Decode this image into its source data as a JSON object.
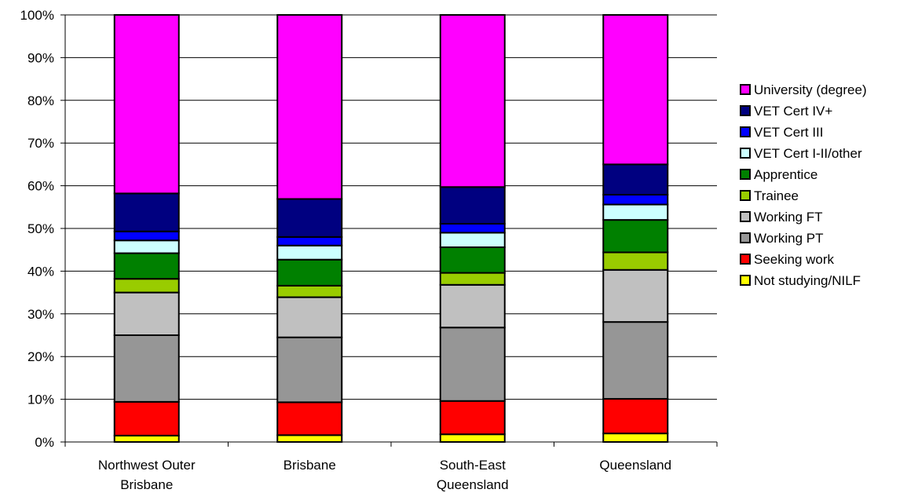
{
  "chart_data": {
    "type": "bar",
    "stacked": true,
    "percent": true,
    "categories": [
      [
        "Northwest Outer",
        "Brisbane"
      ],
      [
        "Brisbane"
      ],
      [
        "South-East",
        "Queensland"
      ],
      [
        "Queensland"
      ]
    ],
    "series": [
      {
        "name": "Not studying/NILF",
        "color": "#FFFF00",
        "values": [
          1.5,
          1.6,
          1.8,
          2.0
        ]
      },
      {
        "name": "Seeking work",
        "color": "#FF0000",
        "values": [
          7.9,
          7.7,
          7.8,
          8.1
        ]
      },
      {
        "name": "Working PT",
        "color": "#969696",
        "values": [
          15.6,
          15.2,
          17.2,
          18.0
        ]
      },
      {
        "name": "Working FT",
        "color": "#C0C0C0",
        "values": [
          10.0,
          9.4,
          10.0,
          12.2
        ]
      },
      {
        "name": "Trainee",
        "color": "#99CC00",
        "values": [
          3.2,
          2.7,
          2.8,
          4.1
        ]
      },
      {
        "name": "Apprentice",
        "color": "#008000",
        "values": [
          6.0,
          6.1,
          6.0,
          7.6
        ]
      },
      {
        "name": "VET Cert I-II/other",
        "color": "#CCFFFF",
        "values": [
          3.0,
          3.3,
          3.4,
          3.6
        ]
      },
      {
        "name": "VET Cert III",
        "color": "#0000FF",
        "values": [
          2.1,
          2.0,
          2.1,
          2.3
        ]
      },
      {
        "name": "VET Cert IV+",
        "color": "#000080",
        "values": [
          8.9,
          8.9,
          8.6,
          7.1
        ]
      },
      {
        "name": "University (degree)",
        "color": "#FF00FF",
        "values": [
          41.8,
          43.1,
          40.3,
          35.0
        ]
      }
    ],
    "y_ticks": [
      "0%",
      "10%",
      "20%",
      "30%",
      "40%",
      "50%",
      "60%",
      "70%",
      "80%",
      "90%",
      "100%"
    ],
    "ylim": [
      0,
      100
    ],
    "grid": true,
    "legend": "right",
    "legend_order": [
      9,
      8,
      7,
      6,
      5,
      4,
      3,
      2,
      1,
      0
    ]
  }
}
